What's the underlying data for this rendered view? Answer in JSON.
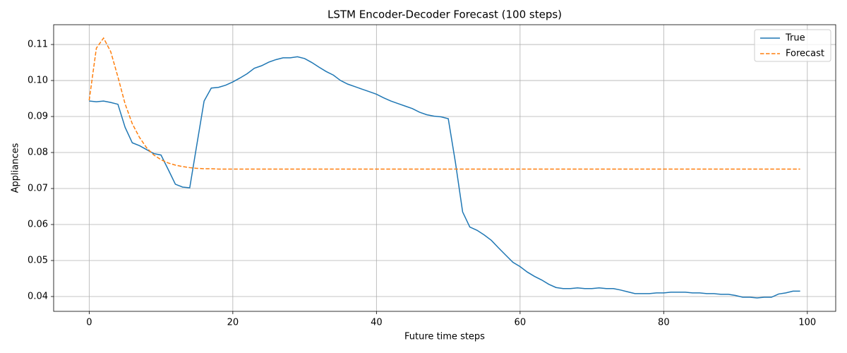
{
  "chart_data": {
    "type": "line",
    "title": "LSTM Encoder-Decoder Forecast (100 steps)",
    "x_label": "Future time steps",
    "y_label": "Appliances",
    "x": [
      0,
      1,
      2,
      3,
      4,
      5,
      6,
      7,
      8,
      9,
      10,
      11,
      12,
      13,
      14,
      15,
      16,
      17,
      18,
      19,
      20,
      21,
      22,
      23,
      24,
      25,
      26,
      27,
      28,
      29,
      30,
      31,
      32,
      33,
      34,
      35,
      36,
      37,
      38,
      39,
      40,
      41,
      42,
      43,
      44,
      45,
      46,
      47,
      48,
      49,
      50,
      51,
      52,
      53,
      54,
      55,
      56,
      57,
      58,
      59,
      60,
      61,
      62,
      63,
      64,
      65,
      66,
      67,
      68,
      69,
      70,
      71,
      72,
      73,
      74,
      75,
      76,
      77,
      78,
      79,
      80,
      81,
      82,
      83,
      84,
      85,
      86,
      87,
      88,
      89,
      90,
      91,
      92,
      93,
      94,
      95,
      96,
      97,
      98,
      99
    ],
    "series": [
      {
        "name": "True",
        "color": "#1f77b4",
        "dash": "solid",
        "values": [
          0.0943,
          0.0941,
          0.0943,
          0.0939,
          0.0934,
          0.087,
          0.0827,
          0.0819,
          0.0808,
          0.0797,
          0.0793,
          0.0753,
          0.0712,
          0.0704,
          0.0702,
          0.0823,
          0.0943,
          0.0979,
          0.0981,
          0.0987,
          0.0996,
          0.1007,
          0.1019,
          0.1034,
          0.1041,
          0.1051,
          0.1058,
          0.1063,
          0.1063,
          0.1066,
          0.1061,
          0.105,
          0.1037,
          0.1025,
          0.1015,
          0.1,
          0.099,
          0.0983,
          0.0976,
          0.0969,
          0.0962,
          0.0952,
          0.0943,
          0.0936,
          0.0929,
          0.0922,
          0.0912,
          0.0905,
          0.0901,
          0.0899,
          0.0894,
          0.0772,
          0.0635,
          0.0593,
          0.0584,
          0.0571,
          0.0556,
          0.0535,
          0.0515,
          0.0495,
          0.0483,
          0.0468,
          0.0456,
          0.0446,
          0.0434,
          0.0425,
          0.0422,
          0.0422,
          0.0424,
          0.0422,
          0.0422,
          0.0424,
          0.0422,
          0.0422,
          0.0418,
          0.0413,
          0.0408,
          0.0408,
          0.0408,
          0.041,
          0.041,
          0.0412,
          0.0412,
          0.0412,
          0.041,
          0.041,
          0.0408,
          0.0408,
          0.0406,
          0.0406,
          0.0403,
          0.0398,
          0.0398,
          0.0396,
          0.0398,
          0.0398,
          0.0407,
          0.041,
          0.0415,
          0.0415
        ]
      },
      {
        "name": "Forecast",
        "color": "#ff7f0e",
        "dash": "dashed",
        "values": [
          0.0945,
          0.109,
          0.1118,
          0.108,
          0.101,
          0.0935,
          0.088,
          0.0842,
          0.0813,
          0.0793,
          0.078,
          0.0771,
          0.0765,
          0.0761,
          0.0758,
          0.0756,
          0.0755,
          0.0755,
          0.0754,
          0.0754,
          0.0754,
          0.0754,
          0.0754,
          0.0754,
          0.0754,
          0.0754,
          0.0754,
          0.0754,
          0.0754,
          0.0754,
          0.0754,
          0.0754,
          0.0754,
          0.0754,
          0.0754,
          0.0754,
          0.0754,
          0.0754,
          0.0754,
          0.0754,
          0.0754,
          0.0754,
          0.0754,
          0.0754,
          0.0754,
          0.0754,
          0.0754,
          0.0754,
          0.0754,
          0.0754,
          0.0754,
          0.0754,
          0.0754,
          0.0754,
          0.0754,
          0.0754,
          0.0754,
          0.0754,
          0.0754,
          0.0754,
          0.0754,
          0.0754,
          0.0754,
          0.0754,
          0.0754,
          0.0754,
          0.0754,
          0.0754,
          0.0754,
          0.0754,
          0.0754,
          0.0754,
          0.0754,
          0.0754,
          0.0754,
          0.0754,
          0.0754,
          0.0754,
          0.0754,
          0.0754,
          0.0754,
          0.0754,
          0.0754,
          0.0754,
          0.0754,
          0.0754,
          0.0754,
          0.0754,
          0.0754,
          0.0754,
          0.0754,
          0.0754,
          0.0754,
          0.0754,
          0.0754,
          0.0754,
          0.0754,
          0.0754,
          0.0754,
          0.0754
        ]
      }
    ],
    "xlim": [
      -4.95,
      103.95
    ],
    "ylim": [
      0.03588,
      0.1155
    ],
    "xticks": [
      0,
      20,
      40,
      60,
      80,
      100
    ],
    "yticks": [
      0.04,
      0.05,
      0.06,
      0.07,
      0.08,
      0.09,
      {
        "value": 0.1,
        "label": "0.10"
      },
      0.11
    ],
    "grid": true,
    "legend": "upper right"
  }
}
